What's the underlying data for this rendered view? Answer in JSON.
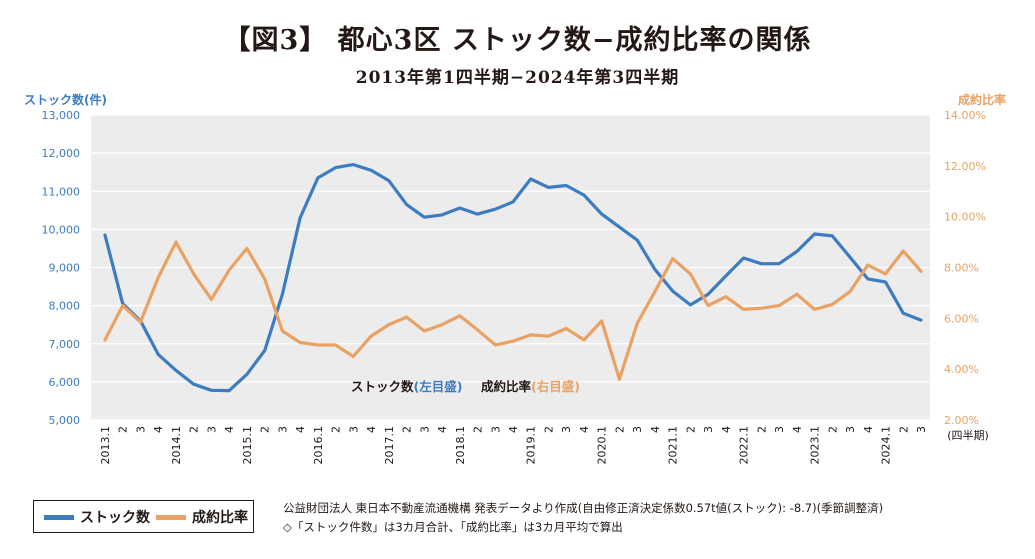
{
  "title": "【図3】 都心3区 ストック数−成約比率の関係",
  "subtitle": "2013年第1四半期−2024年第3四半期",
  "legend": {
    "stock_label": "ストック数",
    "ratio_label": "成約比率"
  },
  "notes": {
    "line1": "公益財団法人 東日本不動産流通機構 発表データより作成(自由修正済決定係数0.57t値(ストック): -8.7)(季節調整済)",
    "line2": "◇「ストック件数」は3カ月合計、「成約比率」は3カ月平均で算出"
  },
  "chart_data": {
    "type": "line",
    "colors": {
      "stock": "#3d7cc0",
      "ratio": "#e9a263",
      "plot_bg": "#ececec",
      "grid": "#ffffff"
    },
    "grid": true,
    "x_unit_label": "(四半期)",
    "x_labels": [
      "2013.1",
      "2",
      "3",
      "4",
      "2014.1",
      "2",
      "3",
      "4",
      "2015.1",
      "2",
      "3",
      "4",
      "2016.1",
      "2",
      "3",
      "4",
      "2017.1",
      "2",
      "3",
      "4",
      "2018.1",
      "2",
      "3",
      "4",
      "2019.1",
      "2",
      "3",
      "4",
      "2020.1",
      "2",
      "3",
      "4",
      "2021.1",
      "2",
      "3",
      "4",
      "2022.1",
      "2",
      "3",
      "4",
      "2023.1",
      "2",
      "3",
      "4",
      "2024.1",
      "2",
      "3"
    ],
    "left_axis": {
      "label": "ストック数(件)",
      "ylim": [
        5000,
        13000
      ],
      "ticks": [
        "5,000",
        "6,000",
        "7,000",
        "8,000",
        "9,000",
        "10,000",
        "11,000",
        "12,000",
        "13,000"
      ]
    },
    "right_axis": {
      "label": "成約比率",
      "ylim": [
        2,
        14
      ],
      "ticks": [
        "2.00%",
        "4.00%",
        "6.00%",
        "8.00%",
        "10.00%",
        "12.00%",
        "14.00%"
      ]
    },
    "series": [
      {
        "name": "ストック数",
        "axis": "left",
        "inline_label": "ストック数",
        "inline_axis_note": "(左目盛)",
        "values": [
          9850,
          8050,
          7600,
          6720,
          6300,
          5940,
          5780,
          5770,
          6200,
          6820,
          8300,
          10300,
          11350,
          11620,
          11700,
          11550,
          11280,
          10650,
          10320,
          10380,
          10560,
          10400,
          10530,
          10720,
          11320,
          11100,
          11150,
          10900,
          10400,
          10060,
          9720,
          8950,
          8380,
          8020,
          8300,
          8780,
          9250,
          9100,
          9100,
          9420,
          9880,
          9830,
          9270,
          8700,
          8620,
          7800,
          7620
        ]
      },
      {
        "name": "成約比率",
        "axis": "right",
        "inline_label": "成約比率",
        "inline_axis_note": "(右目盛)",
        "values": [
          5.15,
          6.5,
          5.85,
          7.6,
          9.0,
          7.75,
          6.75,
          7.9,
          8.75,
          7.55,
          5.5,
          5.05,
          4.95,
          4.95,
          4.5,
          5.3,
          5.75,
          6.05,
          5.5,
          5.75,
          6.1,
          5.55,
          4.95,
          5.1,
          5.35,
          5.3,
          5.6,
          5.15,
          5.9,
          3.6,
          5.8,
          7.05,
          8.35,
          7.75,
          6.5,
          6.85,
          6.35,
          6.4,
          6.5,
          6.95,
          6.35,
          6.55,
          7.05,
          8.1,
          7.75,
          8.65,
          7.85
        ]
      }
    ]
  }
}
